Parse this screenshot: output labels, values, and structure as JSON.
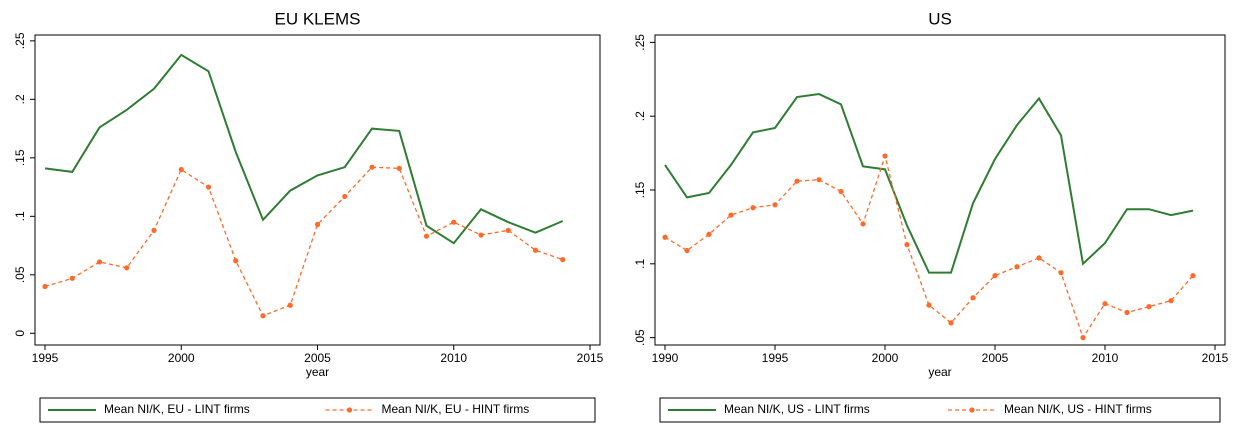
{
  "chart_data": [
    {
      "type": "line",
      "title": "EU KLEMS",
      "x_label": "year",
      "x": [
        1995,
        1996,
        1997,
        1998,
        1999,
        2000,
        2001,
        2002,
        2003,
        2004,
        2005,
        2006,
        2007,
        2008,
        2009,
        2010,
        2011,
        2012,
        2013,
        2014
      ],
      "series": [
        {
          "name": "Mean NI/K, EU - LINT firms",
          "color": "#2f7d32",
          "style": "solid",
          "values": [
            0.141,
            0.138,
            0.176,
            0.191,
            0.209,
            0.238,
            0.224,
            0.155,
            0.097,
            0.122,
            0.135,
            0.142,
            0.175,
            0.173,
            0.092,
            0.077,
            0.106,
            0.095,
            0.086,
            0.096
          ]
        },
        {
          "name": "Mean NI/K, EU - HINT firms",
          "color": "#ff6a2b",
          "style": "dashed",
          "marker": "circle",
          "values": [
            0.04,
            0.047,
            0.061,
            0.056,
            0.088,
            0.14,
            0.125,
            0.062,
            0.015,
            0.024,
            0.093,
            0.117,
            0.142,
            0.141,
            0.083,
            0.095,
            0.084,
            0.088,
            0.071,
            0.063
          ]
        }
      ],
      "xlim": [
        1995,
        2015
      ],
      "xticks": [
        1995,
        2000,
        2005,
        2010,
        2015
      ],
      "ylim": [
        -0.01,
        0.255
      ],
      "yticks": [
        0,
        {
          "value": 0.05,
          "label": ".05"
        },
        {
          "value": 0.1,
          "label": ".1"
        },
        {
          "value": 0.15,
          "label": ".15"
        },
        {
          "value": 0.2,
          "label": ".2"
        },
        {
          "value": 0.25,
          "label": ".25"
        }
      ]
    },
    {
      "type": "line",
      "title": "US",
      "x_label": "year",
      "x": [
        1990,
        1991,
        1992,
        1993,
        1994,
        1995,
        1996,
        1997,
        1998,
        1999,
        2000,
        2001,
        2002,
        2003,
        2004,
        2005,
        2006,
        2007,
        2008,
        2009,
        2010,
        2011,
        2012,
        2013,
        2014
      ],
      "series": [
        {
          "name": "Mean NI/K, US - LINT firms",
          "color": "#2f7d32",
          "style": "solid",
          "values": [
            0.167,
            0.145,
            0.148,
            0.167,
            0.189,
            0.192,
            0.213,
            0.215,
            0.208,
            0.166,
            0.164,
            0.126,
            0.094,
            0.094,
            0.141,
            0.171,
            0.194,
            0.212,
            0.187,
            0.1,
            0.114,
            0.137,
            0.137,
            0.133,
            0.136
          ]
        },
        {
          "name": "Mean NI/K, US - HINT firms",
          "color": "#ff6a2b",
          "style": "dashed",
          "marker": "circle",
          "values": [
            0.118,
            0.109,
            0.12,
            0.133,
            0.138,
            0.14,
            0.156,
            0.157,
            0.149,
            0.127,
            0.173,
            0.113,
            0.072,
            0.06,
            0.077,
            0.092,
            0.098,
            0.104,
            0.094,
            0.05,
            0.073,
            0.067,
            0.071,
            0.075,
            0.092
          ]
        }
      ],
      "xlim": [
        1990,
        2015
      ],
      "xticks": [
        1990,
        1995,
        2000,
        2005,
        2010,
        2015
      ],
      "ylim": [
        0.045,
        0.255
      ],
      "yticks": [
        {
          "value": 0.05,
          "label": ".05"
        },
        {
          "value": 0.1,
          "label": ".1"
        },
        {
          "value": 0.15,
          "label": ".15"
        },
        {
          "value": 0.2,
          "label": ".2"
        },
        {
          "value": 0.25,
          "label": ".25"
        }
      ]
    }
  ]
}
